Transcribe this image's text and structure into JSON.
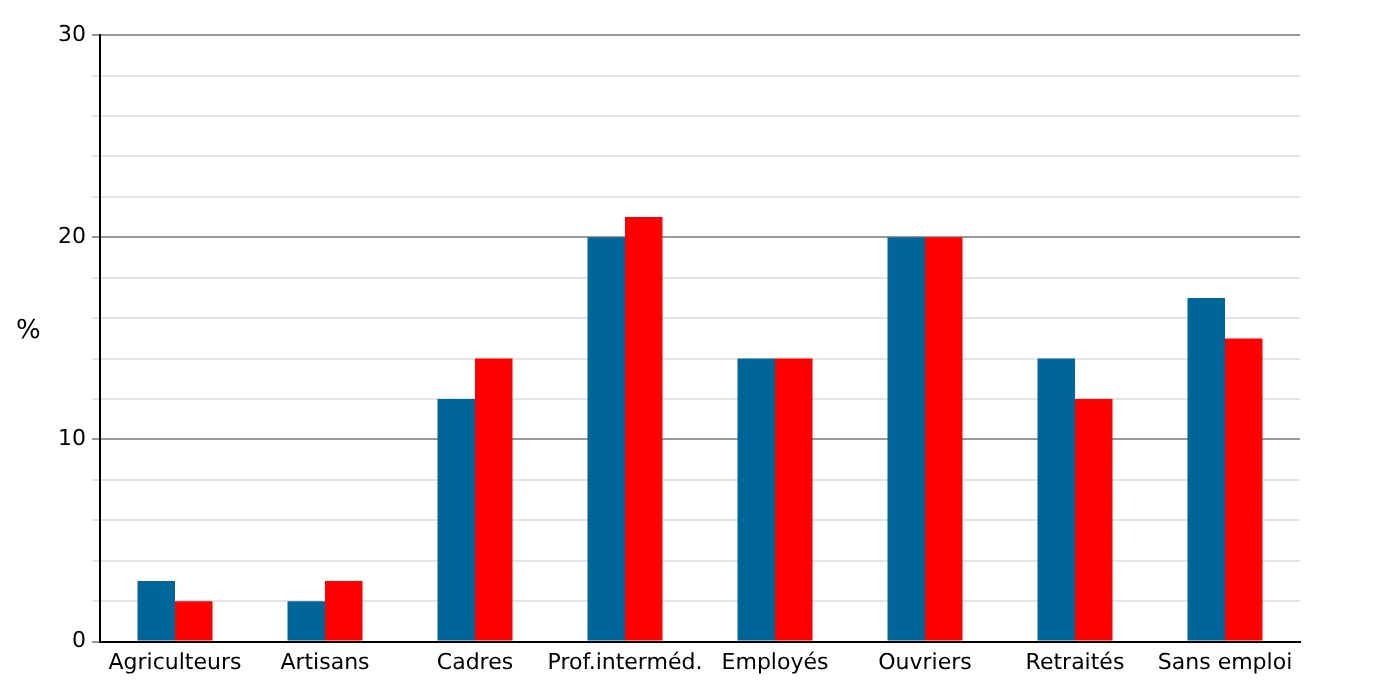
{
  "chart_data": {
    "type": "bar",
    "ylabel": "%",
    "categories": [
      "Agriculteurs",
      "Artisans",
      "Cadres",
      "Prof.interméd.",
      "Employés",
      "Ouvriers",
      "Retraités",
      "Sans emploi"
    ],
    "series": [
      {
        "color": "#006699",
        "values": [
          3,
          2,
          12,
          20,
          14,
          20,
          14,
          17
        ]
      },
      {
        "color": "#ff0000",
        "values": [
          2,
          3,
          14,
          21,
          14,
          20,
          12,
          15
        ]
      }
    ],
    "ylim": [
      0,
      30
    ],
    "yticks": [
      0,
      {
        "value": 2,
        "label": null
      },
      {
        "value": 4,
        "label": null
      },
      {
        "value": 6,
        "label": null
      },
      {
        "value": 8,
        "label": null
      },
      10,
      {
        "value": 12,
        "label": null
      },
      {
        "value": 14,
        "label": null
      },
      {
        "value": 16,
        "label": null
      },
      {
        "value": 18,
        "label": null
      },
      20,
      {
        "value": 22,
        "label": null
      },
      {
        "value": 24,
        "label": null
      },
      {
        "value": 26,
        "label": null
      },
      {
        "value": 28,
        "label": null
      },
      30
    ],
    "grid": "y",
    "legend": false
  }
}
